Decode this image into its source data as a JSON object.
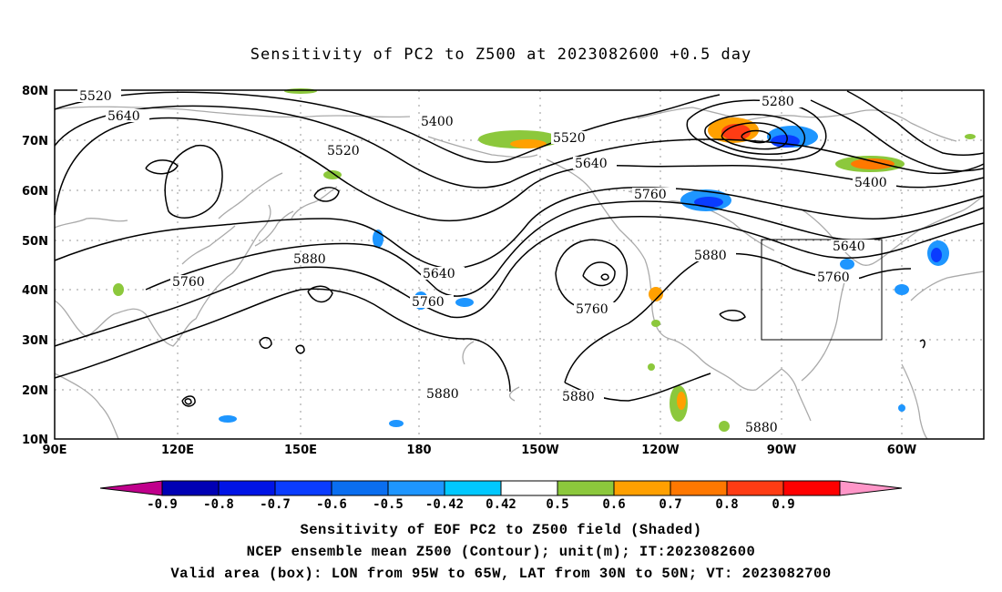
{
  "title": "Sensitivity of PC2 to Z500 at 2023082600 +0.5 day",
  "lat_labels": [
    "80N",
    "70N",
    "60N",
    "50N",
    "40N",
    "30N",
    "20N",
    "10N"
  ],
  "lon_labels": [
    "90E",
    "120E",
    "150E",
    "180",
    "150W",
    "120W",
    "90W",
    "60W"
  ],
  "contour_labels": [
    "5520",
    "5640",
    "5400",
    "5520",
    "5520",
    "5640",
    "5280",
    "5760",
    "5400",
    "5640",
    "5760",
    "5880",
    "5640",
    "5760",
    "5760",
    "5880",
    "5880",
    "5880",
    "5880",
    "5760"
  ],
  "colorbar": {
    "labels": [
      "-0.9",
      "-0.8",
      "-0.7",
      "-0.6",
      "-0.5",
      "-0.42",
      "0.42",
      "0.5",
      "0.6",
      "0.7",
      "0.8",
      "0.9"
    ],
    "colors": [
      "#c0008c",
      "#0000b4",
      "#0014e6",
      "#0a3cff",
      "#0a6ef0",
      "#1e96ff",
      "#00c8ff",
      "#ffffff",
      "#8cc83c",
      "#ffa000",
      "#ff7800",
      "#ff3c14",
      "#ff0000",
      "#ff96c8"
    ]
  },
  "captions": [
    "Sensitivity of EOF PC2 to Z500 field (Shaded)",
    "NCEP ensemble mean Z500 (Contour); unit(m); IT:2023082600",
    "Valid area (box): LON from 95W to 65W, LAT from 30N to 50N; VT: 2023082700"
  ]
}
